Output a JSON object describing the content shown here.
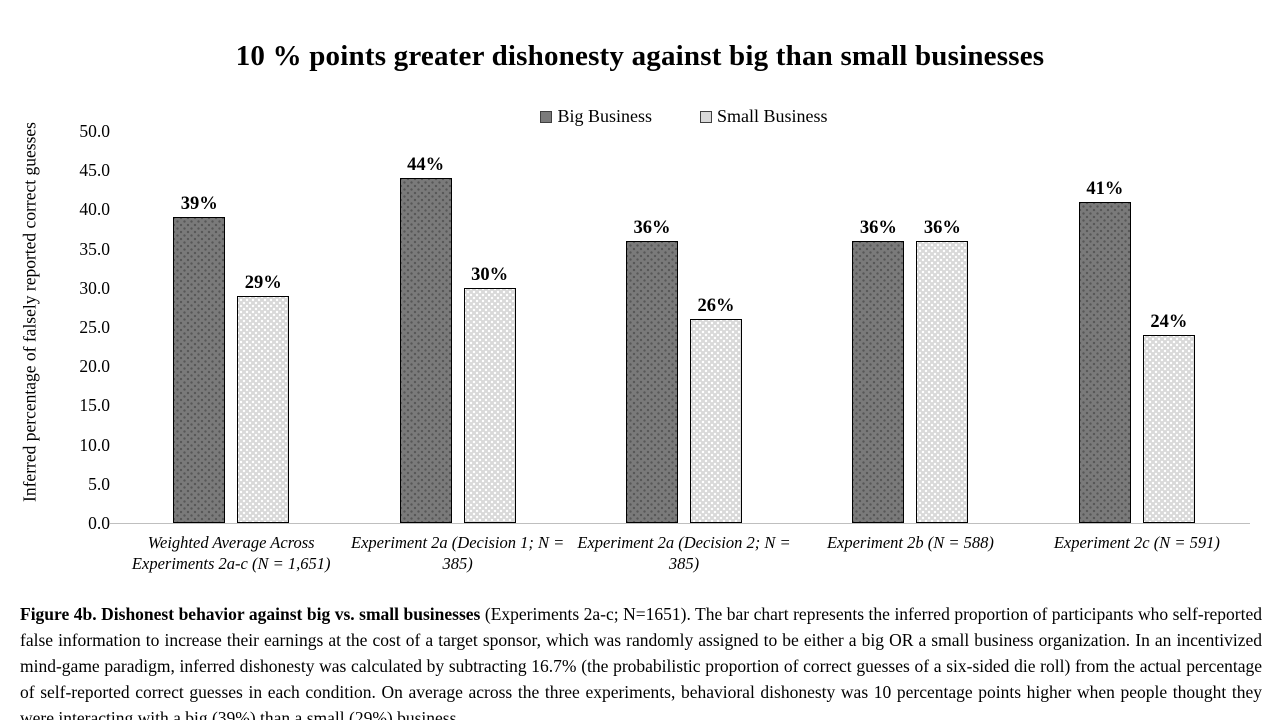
{
  "chart_data": {
    "type": "bar",
    "title": "10 % points greater dishonesty against big than small businesses",
    "ylabel": "Inferred percentage of falsely reported correct guesses",
    "xlabel": "",
    "ylim": [
      0,
      50
    ],
    "grid": false,
    "legend_position": "top",
    "y_ticks": [
      "0.0",
      "5.0",
      "10.0",
      "15.0",
      "20.0",
      "25.0",
      "30.0",
      "35.0",
      "40.0",
      "45.0",
      "50.0"
    ],
    "categories": [
      "Weighted Average Across Experiments 2a-c (N = 1,651)",
      "Experiment 2a (Decision 1; N = 385)",
      "Experiment 2a (Decision 2; N = 385)",
      "Experiment 2b (N = 588)",
      "Experiment 2c (N = 591)"
    ],
    "series": [
      {
        "name": "Big Business",
        "color": "#7a7a7a",
        "values": [
          39,
          44,
          36,
          36,
          41
        ],
        "labels": [
          "39%",
          "44%",
          "36%",
          "36%",
          "41%"
        ]
      },
      {
        "name": "Small Business",
        "color": "#d9d9d9",
        "values": [
          29,
          30,
          26,
          36,
          24
        ],
        "labels": [
          "29%",
          "30%",
          "26%",
          "36%",
          "24%"
        ]
      }
    ],
    "axis_color": "#bfbfbf"
  },
  "caption": {
    "bold": "Figure 4b. Dishonest behavior against big vs. small businesses",
    "rest": " (Experiments 2a-c; N=1651). The bar chart represents the inferred proportion of participants who self-reported false information to increase their earnings at the cost of a target sponsor, which was randomly assigned to be either a big OR a small business organization. In an incentivized mind-game paradigm, inferred dishonesty was calculated by subtracting 16.7% (the probabilistic proportion of correct guesses of a six-sided die roll) from the actual percentage of self-reported correct guesses in each condition. On average across the three experiments, behavioral dishonesty was 10 percentage points higher when people thought they were interacting with a big (39%) than a small (29%) business."
  }
}
